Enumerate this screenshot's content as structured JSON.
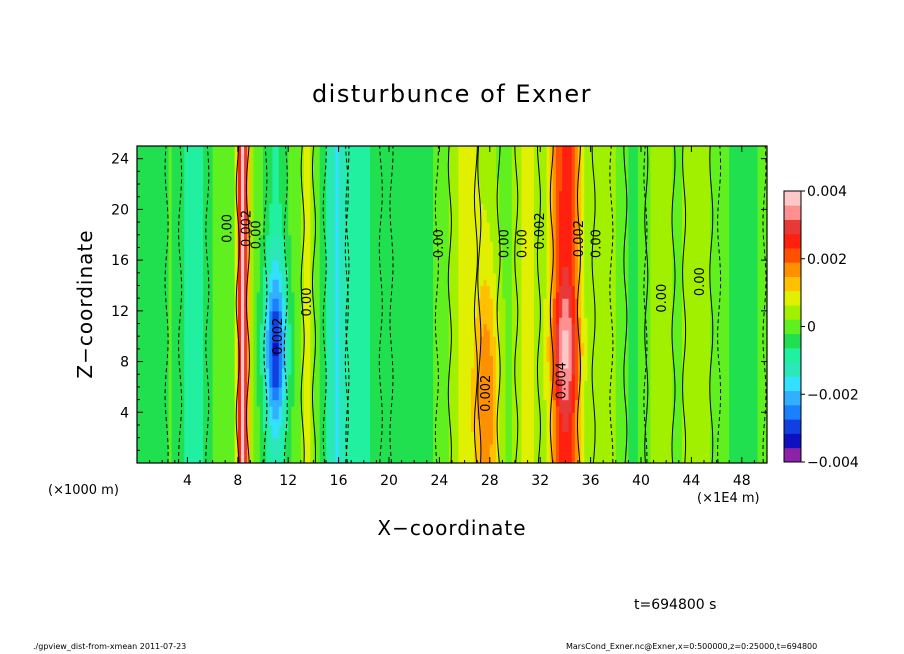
{
  "chart_data": {
    "type": "heatmap",
    "title": "disturbunce of Exner",
    "xlabel": "X−coordinate",
    "ylabel": "Z−coordinate",
    "x_unit_left": "(×1000 m)",
    "x_unit_right": "(×1E4 m)",
    "xlim": [
      0,
      50
    ],
    "ylim": [
      0,
      25
    ],
    "x_ticks": [
      4,
      8,
      12,
      16,
      20,
      24,
      28,
      32,
      36,
      40,
      44,
      48
    ],
    "y_ticks": [
      4,
      8,
      12,
      16,
      20,
      24
    ],
    "colorbar": {
      "vmin": -0.004,
      "vmax": 0.004,
      "ticks": [
        {
          "value": 0.004,
          "label": "0.004"
        },
        {
          "value": 0.002,
          "label": "0.002"
        },
        {
          "value": 0,
          "label": "0"
        },
        {
          "value": -0.002,
          "label": "−0.002"
        },
        {
          "value": -0.004,
          "label": "−0.004"
        }
      ],
      "levels": [
        "#8b22a8",
        "#1010c0",
        "#1040e0",
        "#1a80ff",
        "#30b0ff",
        "#33e0ff",
        "#2ce8b8",
        "#20f0a0",
        "#20e050",
        "#60f020",
        "#a0f000",
        "#e0f000",
        "#ffc000",
        "#ff9000",
        "#ff5000",
        "#ff2010",
        "#e83838",
        "#ff9090",
        "#ffc8c8"
      ]
    },
    "bands": [
      {
        "x": 1.0,
        "sigma": 1.5,
        "amp": -0.0004
      },
      {
        "x": 4.5,
        "sigma": 1.2,
        "amp": -0.0009
      },
      {
        "x": 8.4,
        "sigma": 0.45,
        "amp": 0.0036
      },
      {
        "x": 11.0,
        "sigma": 0.9,
        "amp": -0.0026
      },
      {
        "x": 13.6,
        "sigma": 0.5,
        "amp": 0.0008
      },
      {
        "x": 15.8,
        "sigma": 1.0,
        "amp": -0.0014
      },
      {
        "x": 18.0,
        "sigma": 1.5,
        "amp": -0.0007
      },
      {
        "x": 22.0,
        "sigma": 2.0,
        "amp": -0.0004
      },
      {
        "x": 26.0,
        "sigma": 1.3,
        "amp": 0.0008
      },
      {
        "x": 27.8,
        "sigma": 1.0,
        "amp": 0.0016
      },
      {
        "x": 31.0,
        "sigma": 1.0,
        "amp": 0.0008
      },
      {
        "x": 34.0,
        "sigma": 1.2,
        "amp": 0.0034
      },
      {
        "x": 37.5,
        "sigma": 1.4,
        "amp": 0.0005
      },
      {
        "x": 39.0,
        "sigma": 1.5,
        "amp": -0.0004
      },
      {
        "x": 41.5,
        "sigma": 1.2,
        "amp": 0.0004
      },
      {
        "x": 44.5,
        "sigma": 1.2,
        "amp": 0.0005
      },
      {
        "x": 48.0,
        "sigma": 2.0,
        "amp": -0.0003
      }
    ],
    "contour_labels": [
      {
        "x": 7.5,
        "y": 18.5,
        "text": "0.00"
      },
      {
        "x": 9.0,
        "y": 18.5,
        "text": "0.002"
      },
      {
        "x": 9.8,
        "y": 18.0,
        "text": "0.00"
      },
      {
        "x": 11.5,
        "y": 10.0,
        "text": "0.002"
      },
      {
        "x": 13.8,
        "y": 12.7,
        "text": "0.00"
      },
      {
        "x": 24.3,
        "y": 17.3,
        "text": "0.00"
      },
      {
        "x": 28.0,
        "y": 5.5,
        "text": "0.002"
      },
      {
        "x": 29.5,
        "y": 17.3,
        "text": "0.00"
      },
      {
        "x": 30.9,
        "y": 17.3,
        "text": "0.00"
      },
      {
        "x": 32.3,
        "y": 18.3,
        "text": "0.002"
      },
      {
        "x": 34.0,
        "y": 6.5,
        "text": "0.004"
      },
      {
        "x": 35.4,
        "y": 17.7,
        "text": "0.002"
      },
      {
        "x": 36.8,
        "y": 17.3,
        "text": "0.00"
      },
      {
        "x": 42.0,
        "y": 13.0,
        "text": "0.00"
      },
      {
        "x": 45.0,
        "y": 14.3,
        "text": "0.00"
      }
    ]
  },
  "time_label": "t=694800 s",
  "footer": {
    "left": "./gpview_dist-from-xmean  2011-07-23",
    "right": "MarsCond_Exner.nc@Exner,x=0:500000,z=0:25000,t=694800"
  }
}
